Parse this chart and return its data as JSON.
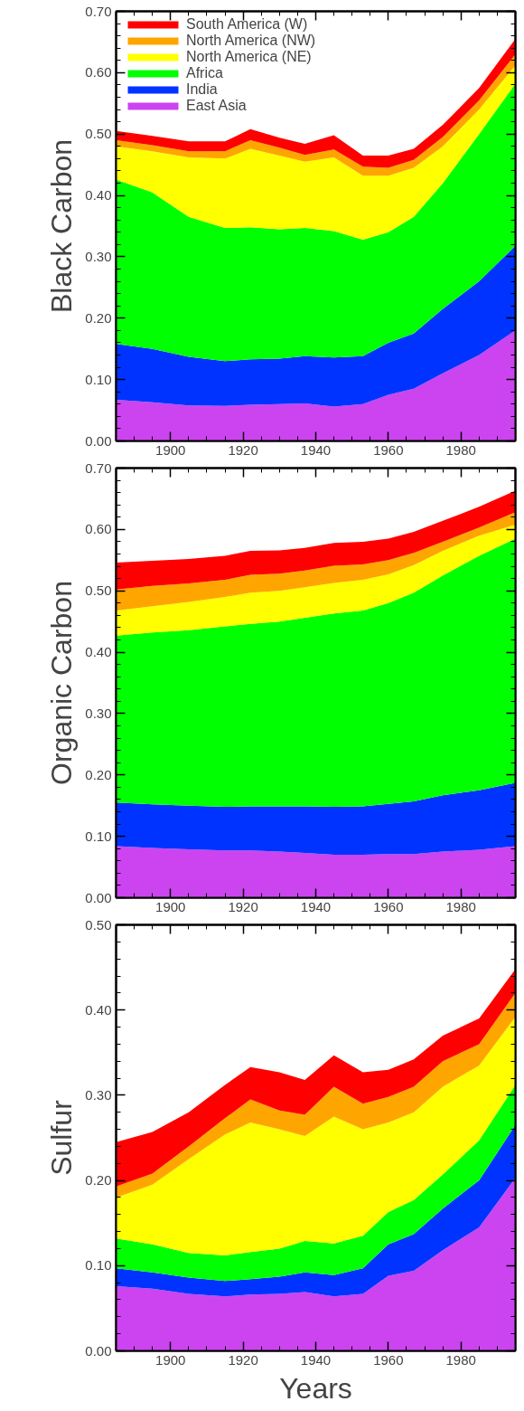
{
  "chart_data": [
    {
      "type": "area",
      "stacked": true,
      "ylabel": "Black Carbon",
      "legend": "top left",
      "grid": false,
      "x": [
        1885,
        1895,
        1905,
        1915,
        1922,
        1930,
        1937,
        1945,
        1953,
        1960,
        1967,
        1975,
        1985,
        1995
      ],
      "xlim": [
        1885,
        1995
      ],
      "xticks": [
        1900,
        1920,
        1940,
        1960,
        1980
      ],
      "ylim": [
        0,
        0.7
      ],
      "yticks": [
        {
          "value": 0,
          "label": "0.00"
        },
        {
          "value": 0.1,
          "label": "0.10"
        },
        {
          "value": 0.2,
          "label": "0.20"
        },
        {
          "value": 0.3,
          "label": "0.30"
        },
        {
          "value": 0.4,
          "label": "0.40"
        },
        {
          "value": 0.5,
          "label": "0.50"
        },
        {
          "value": 0.6,
          "label": "0.60"
        },
        {
          "value": 0.7,
          "label": "0.70"
        }
      ],
      "series": [
        {
          "name": "East Asia",
          "color": "#cc44f0",
          "values": [
            0.067,
            0.063,
            0.058,
            0.057,
            0.059,
            0.06,
            0.061,
            0.056,
            0.06,
            0.075,
            0.085,
            0.11,
            0.14,
            0.18
          ]
        },
        {
          "name": "India",
          "color": "#0033ff",
          "values": [
            0.091,
            0.087,
            0.079,
            0.073,
            0.074,
            0.074,
            0.077,
            0.08,
            0.078,
            0.085,
            0.09,
            0.105,
            0.12,
            0.138
          ]
        },
        {
          "name": "Africa",
          "color": "#00ff00",
          "values": [
            0.268,
            0.255,
            0.228,
            0.217,
            0.215,
            0.211,
            0.209,
            0.206,
            0.19,
            0.18,
            0.19,
            0.205,
            0.24,
            0.264
          ]
        },
        {
          "name": "North America (NE)",
          "color": "#ffff00",
          "values": [
            0.054,
            0.067,
            0.097,
            0.113,
            0.128,
            0.12,
            0.108,
            0.12,
            0.104,
            0.092,
            0.08,
            0.06,
            0.04,
            0.03
          ]
        },
        {
          "name": "North America (NW)",
          "color": "#ffa500",
          "values": [
            0.01,
            0.01,
            0.01,
            0.012,
            0.014,
            0.013,
            0.011,
            0.013,
            0.015,
            0.013,
            0.013,
            0.015,
            0.015,
            0.018
          ]
        },
        {
          "name": "South America (W)",
          "color": "#ff0000",
          "values": [
            0.015,
            0.015,
            0.016,
            0.016,
            0.018,
            0.016,
            0.018,
            0.023,
            0.018,
            0.02,
            0.018,
            0.02,
            0.02,
            0.025
          ]
        }
      ]
    },
    {
      "type": "area",
      "stacked": true,
      "ylabel": "Organic Carbon",
      "grid": false,
      "x": [
        1885,
        1895,
        1905,
        1915,
        1922,
        1930,
        1937,
        1945,
        1953,
        1960,
        1967,
        1975,
        1985,
        1995
      ],
      "xlim": [
        1885,
        1995
      ],
      "xticks": [
        1900,
        1920,
        1940,
        1960,
        1980
      ],
      "ylim": [
        0,
        0.7
      ],
      "yticks": [
        {
          "value": 0,
          "label": "0.00"
        },
        {
          "value": 0.1,
          "label": "0.10"
        },
        {
          "value": 0.2,
          "label": "0.20"
        },
        {
          "value": 0.3,
          "label": "0.30"
        },
        {
          "value": 0.4,
          "label": "0.40"
        },
        {
          "value": 0.5,
          "label": "0.50"
        },
        {
          "value": 0.6,
          "label": "0.60"
        },
        {
          "value": 0.7,
          "label": "0.70"
        }
      ],
      "series": [
        {
          "color": "#cc44f0",
          "values": [
            0.084,
            0.081,
            0.079,
            0.077,
            0.077,
            0.075,
            0.073,
            0.07,
            0.07,
            0.071,
            0.071,
            0.075,
            0.078,
            0.084
          ]
        },
        {
          "color": "#0033ff",
          "values": [
            0.071,
            0.071,
            0.071,
            0.071,
            0.072,
            0.074,
            0.076,
            0.078,
            0.079,
            0.082,
            0.086,
            0.092,
            0.097,
            0.103
          ]
        },
        {
          "color": "#00ff00",
          "values": [
            0.272,
            0.28,
            0.286,
            0.294,
            0.297,
            0.301,
            0.307,
            0.315,
            0.319,
            0.327,
            0.34,
            0.358,
            0.382,
            0.398
          ]
        },
        {
          "color": "#ffff00",
          "values": [
            0.041,
            0.043,
            0.046,
            0.048,
            0.051,
            0.05,
            0.05,
            0.05,
            0.05,
            0.047,
            0.045,
            0.04,
            0.033,
            0.023
          ]
        },
        {
          "color": "#ffa500",
          "values": [
            0.034,
            0.033,
            0.03,
            0.028,
            0.029,
            0.028,
            0.027,
            0.028,
            0.025,
            0.023,
            0.02,
            0.015,
            0.013,
            0.02
          ]
        },
        {
          "color": "#ff0000",
          "values": [
            0.044,
            0.041,
            0.04,
            0.039,
            0.039,
            0.038,
            0.037,
            0.037,
            0.037,
            0.035,
            0.034,
            0.034,
            0.034,
            0.035
          ]
        }
      ]
    },
    {
      "type": "area",
      "stacked": true,
      "ylabel": "Sulfur",
      "xlabel": "Years",
      "grid": false,
      "x": [
        1885,
        1895,
        1905,
        1915,
        1922,
        1930,
        1937,
        1945,
        1953,
        1960,
        1967,
        1975,
        1985,
        1995
      ],
      "xlim": [
        1885,
        1995
      ],
      "xticks": [
        1900,
        1920,
        1940,
        1960,
        1980
      ],
      "ylim": [
        0,
        0.5
      ],
      "yticks": [
        {
          "value": 0,
          "label": "0.00"
        },
        {
          "value": 0.1,
          "label": "0.10"
        },
        {
          "value": 0.2,
          "label": "0.20"
        },
        {
          "value": 0.3,
          "label": "0.30"
        },
        {
          "value": 0.4,
          "label": "0.40"
        },
        {
          "value": 0.5,
          "label": "0.50"
        }
      ],
      "series": [
        {
          "color": "#cc44f0",
          "values": [
            0.076,
            0.073,
            0.067,
            0.064,
            0.066,
            0.067,
            0.069,
            0.064,
            0.067,
            0.088,
            0.094,
            0.118,
            0.145,
            0.203
          ]
        },
        {
          "color": "#0033ff",
          "values": [
            0.021,
            0.019,
            0.019,
            0.018,
            0.018,
            0.02,
            0.023,
            0.025,
            0.03,
            0.037,
            0.043,
            0.049,
            0.055,
            0.062
          ]
        },
        {
          "color": "#00ff00",
          "values": [
            0.035,
            0.033,
            0.029,
            0.03,
            0.032,
            0.033,
            0.037,
            0.037,
            0.038,
            0.038,
            0.04,
            0.04,
            0.047,
            0.047
          ]
        },
        {
          "color": "#ffff00",
          "values": [
            0.048,
            0.07,
            0.11,
            0.142,
            0.152,
            0.14,
            0.123,
            0.149,
            0.125,
            0.105,
            0.103,
            0.103,
            0.088,
            0.08
          ]
        },
        {
          "color": "#ffa500",
          "values": [
            0.013,
            0.013,
            0.015,
            0.019,
            0.027,
            0.022,
            0.025,
            0.035,
            0.03,
            0.03,
            0.03,
            0.03,
            0.025,
            0.028
          ]
        },
        {
          "color": "#ff0000",
          "values": [
            0.052,
            0.049,
            0.04,
            0.039,
            0.038,
            0.045,
            0.041,
            0.037,
            0.037,
            0.032,
            0.032,
            0.03,
            0.03,
            0.028
          ]
        }
      ]
    }
  ]
}
